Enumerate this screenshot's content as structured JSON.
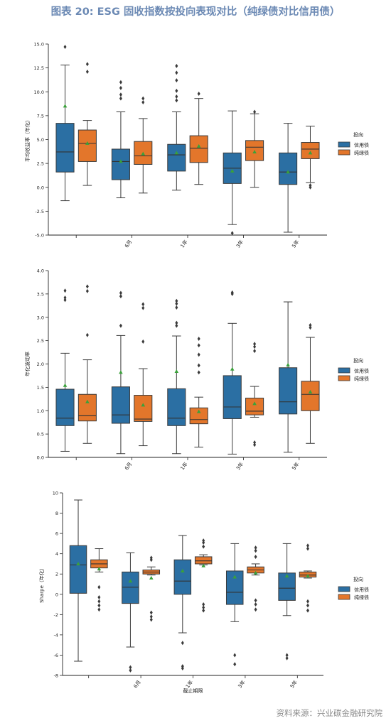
{
  "page": {
    "title": "图表 20: ESG 固收指数按投向表现对比（纯绿债对比信用债）",
    "source": "资料来源：兴业碳金融研究院"
  },
  "colors": {
    "credit": "#2b6fa3",
    "green": "#e3762b",
    "mean": "#3aa13a",
    "median": "#333333"
  },
  "chart_data": [
    {
      "type": "box",
      "ylabel": "平均收益率（年化）",
      "xlabel": "",
      "ylim": [
        -5.0,
        15.0
      ],
      "yticks": [
        -5.0,
        -2.5,
        0.0,
        2.5,
        5.0,
        7.5,
        10.0,
        12.5,
        15.0
      ],
      "ytick_labels": [
        "-5.0",
        "-2.5",
        "0.0",
        "2.5",
        "5.0",
        "7.5",
        "10.0",
        "12.5",
        "15.0"
      ],
      "categories": [
        "",
        "6月",
        "1年",
        "3年",
        "5年"
      ],
      "legend": {
        "title": "投向",
        "entries": [
          "信用债",
          "纯绿债"
        ],
        "position": "right"
      },
      "series": [
        {
          "name": "信用债",
          "boxes": [
            {
              "q1": 1.6,
              "median": 3.7,
              "q3": 6.7,
              "whislo": -1.4,
              "whishi": 12.8,
              "mean": 8.5,
              "fliers": [
                14.7
              ]
            },
            {
              "q1": 0.8,
              "median": 2.7,
              "q3": 4.0,
              "whislo": -1.1,
              "whishi": 7.9,
              "mean": 2.7,
              "fliers": [
                9.3,
                9.7,
                10.4,
                11.0
              ]
            },
            {
              "q1": 1.7,
              "median": 3.4,
              "q3": 4.5,
              "whislo": -0.3,
              "whishi": 7.9,
              "mean": 3.6,
              "fliers": [
                9.1,
                9.5,
                10.1,
                11.2,
                12.0,
                12.7
              ]
            },
            {
              "q1": 0.4,
              "median": 2.0,
              "q3": 3.6,
              "whislo": -3.9,
              "whishi": 8.0,
              "mean": 1.7,
              "fliers": [
                -4.8
              ]
            },
            {
              "q1": 0.3,
              "median": 1.6,
              "q3": 3.6,
              "whislo": -4.7,
              "whishi": 6.7,
              "mean": 1.6,
              "fliers": []
            }
          ]
        },
        {
          "name": "纯绿债",
          "boxes": [
            {
              "q1": 2.7,
              "median": 4.6,
              "q3": 6.0,
              "whislo": 0.2,
              "whishi": 7.0,
              "mean": 4.6,
              "fliers": [
                12.1,
                12.9
              ]
            },
            {
              "q1": 2.4,
              "median": 3.3,
              "q3": 4.8,
              "whislo": -0.6,
              "whishi": 7.2,
              "mean": 3.5,
              "fliers": [
                8.9,
                9.3
              ]
            },
            {
              "q1": 2.6,
              "median": 4.1,
              "q3": 5.4,
              "whislo": 0.3,
              "whishi": 9.3,
              "mean": 4.3,
              "fliers": [
                9.8
              ]
            },
            {
              "q1": 2.8,
              "median": 4.2,
              "q3": 4.9,
              "whislo": 0.0,
              "whishi": 7.7,
              "mean": 3.7,
              "fliers": [
                7.9
              ]
            },
            {
              "q1": 3.0,
              "median": 4.0,
              "q3": 4.7,
              "whislo": 0.5,
              "whishi": 6.4,
              "mean": 3.6,
              "fliers": [
                0.0,
                0.2
              ]
            }
          ]
        }
      ]
    },
    {
      "type": "box",
      "ylabel": "年化波动率",
      "xlabel": "",
      "ylim": [
        0.0,
        4.0
      ],
      "yticks": [
        0.0,
        0.5,
        1.0,
        1.5,
        2.0,
        2.5,
        3.0,
        3.5,
        4.0
      ],
      "ytick_labels": [
        "0.0",
        "0.5",
        "1.0",
        "1.5",
        "2.0",
        "2.5",
        "3.0",
        "3.5",
        "4.0"
      ],
      "categories": [
        "",
        "6月",
        "1年",
        "3年",
        "5年"
      ],
      "legend": {
        "title": "投向",
        "entries": [
          "信用债",
          "纯绿债"
        ],
        "position": "right"
      },
      "series": [
        {
          "name": "信用债",
          "boxes": [
            {
              "q1": 0.68,
              "median": 0.84,
              "q3": 1.46,
              "whislo": 0.13,
              "whishi": 2.23,
              "mean": 1.54,
              "fliers": [
                3.37,
                3.42,
                3.57
              ]
            },
            {
              "q1": 0.73,
              "median": 0.91,
              "q3": 1.51,
              "whislo": 0.08,
              "whishi": 2.61,
              "mean": 1.82,
              "fliers": [
                2.82,
                3.45,
                3.52
              ]
            },
            {
              "q1": 0.68,
              "median": 0.84,
              "q3": 1.47,
              "whislo": 0.08,
              "whishi": 2.6,
              "mean": 1.84,
              "fliers": [
                2.82,
                2.88,
                3.21,
                3.29,
                3.35
              ]
            },
            {
              "q1": 0.83,
              "median": 1.08,
              "q3": 1.75,
              "whislo": 0.07,
              "whishi": 2.87,
              "mean": 1.89,
              "fliers": [
                3.5,
                3.53
              ]
            },
            {
              "q1": 0.93,
              "median": 1.19,
              "q3": 1.92,
              "whislo": 0.11,
              "whishi": 3.33,
              "mean": 1.98,
              "fliers": []
            }
          ]
        },
        {
          "name": "纯绿债",
          "boxes": [
            {
              "q1": 0.78,
              "median": 0.89,
              "q3": 1.35,
              "whislo": 0.3,
              "whishi": 2.09,
              "mean": 1.19,
              "fliers": [
                2.62,
                3.56,
                3.66
              ]
            },
            {
              "q1": 0.77,
              "median": 0.82,
              "q3": 1.33,
              "whislo": 0.25,
              "whishi": 1.9,
              "mean": 1.12,
              "fliers": [
                2.48,
                3.2,
                3.28
              ]
            },
            {
              "q1": 0.72,
              "median": 0.81,
              "q3": 1.06,
              "whislo": 0.22,
              "whishi": 1.29,
              "mean": 0.98,
              "fliers": [
                1.82,
                1.97,
                2.2,
                2.4,
                2.54
              ]
            },
            {
              "q1": 0.91,
              "median": 0.99,
              "q3": 1.27,
              "whislo": 0.86,
              "whishi": 1.52,
              "mean": 1.15,
              "fliers": [
                0.27,
                0.32,
                2.28,
                2.37,
                2.43
              ]
            },
            {
              "q1": 1.0,
              "median": 1.35,
              "q3": 1.63,
              "whislo": 0.3,
              "whishi": 2.57,
              "mean": 1.4,
              "fliers": [
                2.78,
                2.83
              ]
            }
          ]
        }
      ]
    },
    {
      "type": "box",
      "ylabel": "Sharpe（年化）",
      "xlabel": "截止期限",
      "ylim": [
        -8,
        10
      ],
      "yticks": [
        -8,
        -6,
        -4,
        -2,
        0,
        2,
        4,
        6,
        8,
        10
      ],
      "ytick_labels": [
        "-8",
        "-6",
        "-4",
        "-2",
        "0",
        "2",
        "4",
        "6",
        "8",
        "10"
      ],
      "categories": [
        "",
        "6月",
        "1年",
        "3年",
        "5年"
      ],
      "legend": {
        "title": "投向",
        "entries": [
          "信用债",
          "纯绿债"
        ],
        "position": "right"
      },
      "series": [
        {
          "name": "信用债",
          "boxes": [
            {
              "q1": 0.1,
              "median": 2.9,
              "q3": 4.8,
              "whislo": -6.6,
              "whishi": 9.3,
              "mean": 3.0,
              "fliers": []
            },
            {
              "q1": -0.9,
              "median": 0.7,
              "q3": 2.2,
              "whislo": -5.2,
              "whishi": 4.1,
              "mean": 1.3,
              "fliers": [
                -7.2,
                -7.5
              ]
            },
            {
              "q1": 0.0,
              "median": 1.3,
              "q3": 3.4,
              "whislo": -3.8,
              "whishi": 5.8,
              "mean": 2.3,
              "fliers": [
                -4.8,
                -7.1,
                -7.3
              ]
            },
            {
              "q1": -1.0,
              "median": 0.2,
              "q3": 2.3,
              "whislo": -2.7,
              "whishi": 5.0,
              "mean": 1.7,
              "fliers": [
                -6.0,
                -6.9
              ]
            },
            {
              "q1": -0.6,
              "median": 0.6,
              "q3": 2.1,
              "whislo": -2.1,
              "whishi": 5.0,
              "mean": 1.8,
              "fliers": [
                -6.0,
                -6.3
              ]
            }
          ]
        },
        {
          "name": "纯绿债",
          "boxes": [
            {
              "q1": 2.6,
              "median": 3.0,
              "q3": 3.4,
              "whislo": 2.2,
              "whishi": 4.5,
              "mean": 2.5,
              "fliers": [
                0.7,
                -0.3,
                -0.7,
                -1.1,
                -1.5
              ]
            },
            {
              "q1": 2.0,
              "median": 2.2,
              "q3": 2.4,
              "whislo": 1.9,
              "whishi": 2.7,
              "mean": 1.6,
              "fliers": [
                3.4,
                3.6,
                -1.8,
                -2.2,
                -2.5
              ]
            },
            {
              "q1": 3.0,
              "median": 3.3,
              "q3": 3.7,
              "whislo": 2.9,
              "whishi": 3.9,
              "mean": 2.8,
              "fliers": [
                4.7,
                5.1,
                5.3,
                -1.0,
                -1.3,
                -1.6
              ]
            },
            {
              "q1": 2.1,
              "median": 2.4,
              "q3": 2.7,
              "whislo": 1.9,
              "whishi": 3.0,
              "mean": 2.1,
              "fliers": [
                3.7,
                4.3,
                4.6,
                -0.6,
                -1.0,
                -1.5
              ]
            },
            {
              "q1": 1.7,
              "median": 1.9,
              "q3": 2.2,
              "whislo": 1.6,
              "whishi": 2.3,
              "mean": 1.8,
              "fliers": [
                4.5,
                4.8,
                -0.7,
                -1.1,
                -1.6
              ]
            }
          ]
        }
      ]
    }
  ]
}
